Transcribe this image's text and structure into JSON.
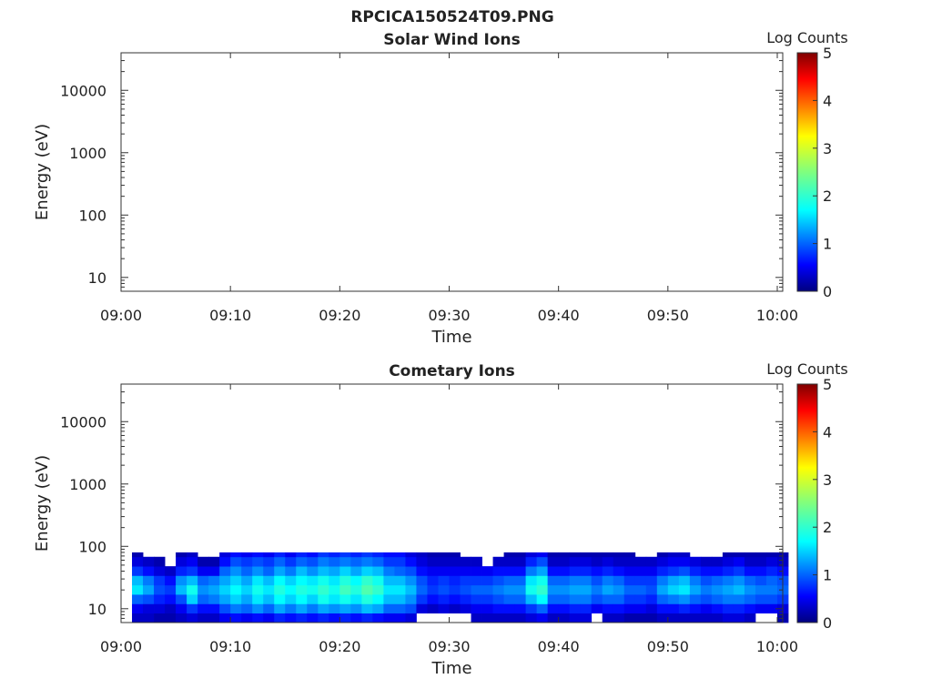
{
  "figure": {
    "title": "RPCICA150524T09.PNG"
  },
  "chart_data": [
    {
      "type": "heatmap",
      "title": "Solar Wind Ions",
      "xlabel": "Time",
      "ylabel": "Energy (eV)",
      "x_ticks": [
        "09:00",
        "09:10",
        "09:20",
        "09:30",
        "09:40",
        "09:50",
        "10:00"
      ],
      "y_ticks": [
        "10",
        "100",
        "1000",
        "10000"
      ],
      "y_scale": "log",
      "xlim_minutes": [
        0,
        60.5
      ],
      "ylim": [
        6,
        40000
      ],
      "colorbar": {
        "label": "Log Counts",
        "ticks": [
          "0",
          "1",
          "2",
          "3",
          "4",
          "5"
        ],
        "range": [
          0,
          5
        ],
        "colormap": "jet"
      },
      "cells": []
    },
    {
      "type": "heatmap",
      "title": "Cometary Ions",
      "xlabel": "Time",
      "ylabel": "Energy (eV)",
      "x_ticks": [
        "09:00",
        "09:10",
        "09:20",
        "09:30",
        "09:40",
        "09:50",
        "10:00"
      ],
      "y_ticks": [
        "10",
        "100",
        "1000",
        "10000"
      ],
      "y_scale": "log",
      "xlim_minutes": [
        0,
        60.5
      ],
      "ylim": [
        6,
        40000
      ],
      "colorbar": {
        "label": "Log Counts",
        "ticks": [
          "0",
          "1",
          "2",
          "3",
          "4",
          "5"
        ],
        "range": [
          0,
          5
        ],
        "colormap": "jet"
      },
      "time_bin_minutes": 1,
      "energy_bin_edges": [
        6,
        8.5,
        12,
        17,
        24,
        34,
        48,
        68,
        80
      ],
      "cells": [
        [
          0.3,
          0.5,
          1.0,
          1.6,
          1.4,
          0.8,
          0.4,
          0.2
        ],
        [
          0.3,
          0.4,
          0.9,
          1.3,
          1.1,
          0.6,
          0.3,
          null
        ],
        [
          0.2,
          0.4,
          0.7,
          0.9,
          0.8,
          0.4,
          0.2,
          null
        ],
        [
          0.2,
          0.3,
          0.6,
          0.8,
          0.6,
          0.3,
          null,
          null
        ],
        [
          0.3,
          0.5,
          0.9,
          1.4,
          1.2,
          0.7,
          0.4,
          0.2
        ],
        [
          0.4,
          0.8,
          1.5,
          1.8,
          1.4,
          0.8,
          0.5,
          0.3
        ],
        [
          0.3,
          0.6,
          1.0,
          1.2,
          1.0,
          0.5,
          0.2,
          null
        ],
        [
          0.3,
          0.6,
          1.1,
          1.3,
          1.1,
          0.5,
          0.2,
          null
        ],
        [
          0.5,
          0.9,
          1.3,
          1.5,
          1.3,
          1.0,
          0.6,
          0.4
        ],
        [
          0.6,
          1.1,
          1.5,
          1.7,
          1.5,
          1.2,
          0.9,
          0.6
        ],
        [
          0.5,
          1.0,
          1.3,
          1.5,
          1.3,
          1.0,
          0.8,
          0.5
        ],
        [
          0.6,
          1.2,
          1.6,
          1.8,
          1.6,
          1.2,
          0.9,
          0.6
        ],
        [
          0.5,
          1.0,
          1.4,
          1.6,
          1.4,
          1.0,
          0.8,
          0.5
        ],
        [
          0.7,
          1.3,
          1.7,
          1.9,
          1.7,
          1.3,
          1.0,
          0.7
        ],
        [
          0.6,
          1.1,
          1.5,
          1.7,
          1.5,
          1.1,
          0.8,
          0.5
        ],
        [
          0.7,
          1.3,
          1.7,
          1.9,
          1.7,
          1.4,
          1.0,
          0.7
        ],
        [
          0.6,
          1.1,
          1.5,
          1.8,
          1.6,
          1.2,
          0.9,
          0.6
        ],
        [
          0.7,
          1.3,
          1.8,
          2.0,
          1.8,
          1.4,
          1.1,
          0.8
        ],
        [
          0.6,
          1.2,
          1.6,
          1.8,
          1.6,
          1.3,
          1.0,
          0.7
        ],
        [
          0.7,
          1.3,
          1.8,
          2.1,
          1.9,
          1.5,
          1.1,
          0.8
        ],
        [
          0.6,
          1.2,
          1.6,
          1.9,
          1.7,
          1.3,
          1.0,
          0.7
        ],
        [
          0.7,
          1.4,
          1.9,
          2.2,
          2.0,
          1.5,
          1.1,
          0.8
        ],
        [
          0.6,
          1.3,
          1.7,
          2.0,
          1.8,
          1.4,
          1.0,
          0.7
        ],
        [
          0.5,
          1.0,
          1.4,
          1.6,
          1.4,
          1.1,
          0.8,
          0.6
        ],
        [
          0.5,
          1.0,
          1.4,
          1.6,
          1.4,
          1.0,
          0.8,
          0.6
        ],
        [
          0.4,
          0.9,
          1.2,
          1.4,
          1.2,
          0.9,
          0.6,
          0.4
        ],
        [
          null,
          0.4,
          0.8,
          1.0,
          0.9,
          0.6,
          0.4,
          0.3
        ],
        [
          null,
          0.3,
          0.6,
          0.8,
          0.7,
          0.5,
          0.3,
          0.2
        ],
        [
          null,
          0.4,
          0.7,
          0.9,
          0.8,
          0.5,
          0.3,
          0.2
        ],
        [
          null,
          0.3,
          0.6,
          0.8,
          0.7,
          0.5,
          0.3,
          0.2
        ],
        [
          null,
          0.4,
          0.7,
          0.9,
          0.8,
          0.5,
          0.3,
          null
        ],
        [
          0.3,
          0.5,
          0.8,
          1.0,
          0.8,
          0.5,
          0.3,
          null
        ],
        [
          0.3,
          0.5,
          0.8,
          1.0,
          0.8,
          0.5,
          null,
          null
        ],
        [
          0.3,
          0.6,
          0.9,
          1.1,
          0.9,
          0.6,
          0.3,
          null
        ],
        [
          0.3,
          0.6,
          1.0,
          1.2,
          1.0,
          0.6,
          0.3,
          0.2
        ],
        [
          0.3,
          0.6,
          1.0,
          1.2,
          1.0,
          0.6,
          0.3,
          0.2
        ],
        [
          0.4,
          0.8,
          1.4,
          1.8,
          1.6,
          1.1,
          0.7,
          0.4
        ],
        [
          0.5,
          1.0,
          1.7,
          2.0,
          1.8,
          1.3,
          0.9,
          0.5
        ],
        [
          0.3,
          0.6,
          1.0,
          1.2,
          1.0,
          0.6,
          0.3,
          0.2
        ],
        [
          0.3,
          0.6,
          1.0,
          1.2,
          1.0,
          0.6,
          0.3,
          0.2
        ],
        [
          0.4,
          0.7,
          1.1,
          1.3,
          1.1,
          0.7,
          0.4,
          0.2
        ],
        [
          0.4,
          0.7,
          1.1,
          1.3,
          1.1,
          0.7,
          0.4,
          0.2
        ],
        [
          null,
          0.5,
          0.9,
          1.1,
          0.9,
          0.6,
          0.3,
          0.2
        ],
        [
          0.3,
          0.6,
          1.0,
          1.3,
          1.1,
          0.7,
          0.4,
          0.2
        ],
        [
          0.3,
          0.6,
          1.0,
          1.2,
          1.0,
          0.6,
          0.3,
          0.2
        ],
        [
          0.2,
          0.5,
          0.8,
          1.0,
          0.8,
          0.5,
          0.3,
          0.2
        ],
        [
          0.2,
          0.5,
          0.8,
          1.0,
          0.8,
          0.5,
          0.3,
          null
        ],
        [
          0.2,
          0.4,
          0.7,
          0.9,
          0.8,
          0.5,
          0.3,
          null
        ],
        [
          0.3,
          0.6,
          1.0,
          1.3,
          1.1,
          0.7,
          0.4,
          0.2
        ],
        [
          0.3,
          0.6,
          1.1,
          1.5,
          1.3,
          0.8,
          0.5,
          0.3
        ],
        [
          0.3,
          0.7,
          1.2,
          1.6,
          1.4,
          0.9,
          0.5,
          0.3
        ],
        [
          0.3,
          0.6,
          1.0,
          1.3,
          1.1,
          0.7,
          0.4,
          null
        ],
        [
          0.3,
          0.5,
          0.9,
          1.1,
          0.9,
          0.6,
          0.3,
          null
        ],
        [
          0.3,
          0.6,
          1.0,
          1.2,
          1.0,
          0.6,
          0.3,
          null
        ],
        [
          0.4,
          0.7,
          1.1,
          1.3,
          1.1,
          0.7,
          0.4,
          0.2
        ],
        [
          0.4,
          0.7,
          1.1,
          1.4,
          1.2,
          0.8,
          0.5,
          0.2
        ],
        [
          0.3,
          0.6,
          1.0,
          1.2,
          1.0,
          0.6,
          0.3,
          0.2
        ],
        [
          null,
          0.5,
          0.9,
          1.1,
          0.9,
          0.6,
          0.3,
          0.2
        ],
        [
          null,
          0.5,
          0.9,
          1.1,
          1.0,
          0.7,
          0.4,
          0.2
        ],
        [
          0.2,
          0.4,
          0.8,
          1.0,
          0.9,
          0.6,
          0.3,
          0.2
        ]
      ]
    }
  ]
}
